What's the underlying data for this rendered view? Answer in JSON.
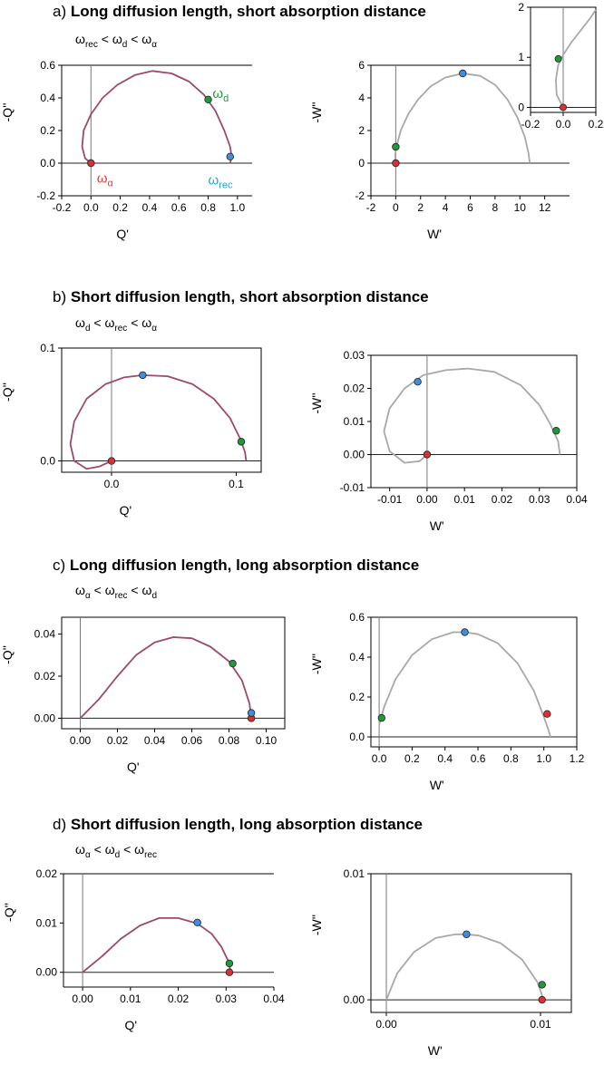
{
  "panels": [
    {
      "letter": "a)",
      "title": "Long diffusion length, short absorption distance",
      "ordering": [
        {
          "sym": "ω",
          "sub": "rec"
        },
        {
          "op": "<"
        },
        {
          "sym": "ω",
          "sub": "d"
        },
        {
          "op": "<"
        },
        {
          "sym": "ω",
          "sub": "α"
        }
      ]
    },
    {
      "letter": "b)",
      "title": "Short diffusion length, short absorption distance",
      "ordering": [
        {
          "sym": "ω",
          "sub": "d"
        },
        {
          "op": "<"
        },
        {
          "sym": "ω",
          "sub": "rec"
        },
        {
          "op": "<"
        },
        {
          "sym": "ω",
          "sub": "α"
        }
      ]
    },
    {
      "letter": "c)",
      "title": "Long diffusion length, long absorption distance",
      "ordering": [
        {
          "sym": "ω",
          "sub": "α"
        },
        {
          "op": "<"
        },
        {
          "sym": "ω",
          "sub": "rec"
        },
        {
          "op": "<"
        },
        {
          "sym": "ω",
          "sub": "d"
        }
      ]
    },
    {
      "letter": "d)",
      "title": "Short diffusion length, long absorption distance",
      "ordering": [
        {
          "sym": "ω",
          "sub": "α"
        },
        {
          "op": "<"
        },
        {
          "sym": "ω",
          "sub": "d"
        },
        {
          "op": "<"
        },
        {
          "sym": "ω",
          "sub": "rec"
        }
      ]
    }
  ],
  "colors": {
    "q_curve": "#9b4a6e",
    "w_curve": "#a8a8a8",
    "rec_marker": "#3d8fdc",
    "d_marker": "#1e9a3c",
    "alpha_marker": "#d93030",
    "rec_label": "#29a3d6",
    "d_label": "#1e9a3c",
    "alpha_label": "#e0403a"
  },
  "chart_data": [
    {
      "id": "a-Q",
      "type": "line",
      "xlabel": "Q'",
      "ylabel": "-Q''",
      "xlim": [
        -0.2,
        1.1
      ],
      "ylim": [
        -0.2,
        0.6
      ],
      "xticks": [
        -0.2,
        0.0,
        0.2,
        0.4,
        0.6,
        0.8,
        1.0
      ],
      "xtick_labels": [
        "-0.2",
        "0.0",
        "0.2",
        "0.4",
        "0.6",
        "0.8",
        "1.0"
      ],
      "yticks": [
        -0.2,
        0.0,
        0.2,
        0.4,
        0.6
      ],
      "ytick_labels": [
        "-0.2",
        "0.0",
        "0.2",
        "0.4",
        "0.6"
      ],
      "series": [
        {
          "color": "q_curve",
          "x": [
            0.0,
            -0.04,
            -0.06,
            -0.05,
            0.0,
            0.08,
            0.18,
            0.3,
            0.42,
            0.55,
            0.67,
            0.77,
            0.85,
            0.91,
            0.95,
            0.96,
            0.95
          ],
          "y": [
            0.0,
            0.03,
            0.1,
            0.2,
            0.3,
            0.4,
            0.48,
            0.54,
            0.565,
            0.55,
            0.5,
            0.42,
            0.32,
            0.2,
            0.1,
            0.04,
            0.0
          ]
        }
      ],
      "markers": [
        {
          "x": 0.0,
          "y": 0.0,
          "color": "alpha_marker"
        },
        {
          "x": 0.8,
          "y": 0.39,
          "color": "d_marker"
        },
        {
          "x": 0.95,
          "y": 0.04,
          "color": "rec_marker"
        }
      ],
      "labels": [
        {
          "text": "ω",
          "sub": "α",
          "x": 0.04,
          "y": -0.12,
          "color": "alpha_label"
        },
        {
          "text": "ω",
          "sub": "d",
          "x": 0.83,
          "y": 0.4,
          "color": "d_label"
        },
        {
          "text": "ω",
          "sub": "rec",
          "x": 0.8,
          "y": -0.13,
          "color": "rec_label"
        }
      ]
    },
    {
      "id": "a-W",
      "type": "line",
      "xlabel": "W'",
      "ylabel": "-W''",
      "xlim": [
        -2,
        14
      ],
      "ylim": [
        -2,
        6
      ],
      "xticks": [
        -2,
        0,
        2,
        4,
        6,
        8,
        10,
        12
      ],
      "xtick_labels": [
        "-2",
        "0",
        "2",
        "4",
        "6",
        "8",
        "10",
        "12"
      ],
      "yticks": [
        -2,
        0,
        2,
        4,
        6
      ],
      "ytick_labels": [
        "-2",
        "0",
        "2",
        "4",
        "6"
      ],
      "series": [
        {
          "color": "w_curve",
          "x": [
            0.0,
            -0.05,
            0.05,
            0.4,
            1.0,
            1.8,
            2.8,
            4.0,
            5.4,
            6.8,
            8.0,
            9.0,
            9.8,
            10.4,
            10.7,
            10.8
          ],
          "y": [
            0.0,
            0.5,
            1.0,
            2.0,
            3.0,
            3.9,
            4.7,
            5.25,
            5.5,
            5.35,
            4.8,
            3.9,
            2.8,
            1.6,
            0.6,
            0.0
          ]
        }
      ],
      "markers": [
        {
          "x": 0.0,
          "y": 0.0,
          "color": "alpha_marker"
        },
        {
          "x": 0.0,
          "y": 1.0,
          "color": "d_marker"
        },
        {
          "x": 5.4,
          "y": 5.5,
          "color": "rec_marker"
        }
      ],
      "labels": []
    },
    {
      "id": "a-W-inset",
      "type": "line",
      "xlabel": "",
      "ylabel": "",
      "xlim": [
        -0.2,
        0.2
      ],
      "ylim": [
        -0.1,
        2.0
      ],
      "xticks": [
        -0.2,
        0.0,
        0.2
      ],
      "xtick_labels": [
        "-0.2",
        "0.0",
        "0.2"
      ],
      "yticks": [
        0,
        1,
        2
      ],
      "ytick_labels": [
        "0",
        "1",
        "2"
      ],
      "series": [
        {
          "color": "w_curve",
          "x": [
            0.0,
            -0.04,
            -0.045,
            -0.03,
            0.0,
            0.05,
            0.11,
            0.17,
            0.2
          ],
          "y": [
            0.0,
            0.25,
            0.55,
            0.85,
            1.05,
            1.3,
            1.55,
            1.8,
            1.95
          ]
        }
      ],
      "markers": [
        {
          "x": 0.0,
          "y": 0.0,
          "color": "alpha_marker"
        },
        {
          "x": -0.03,
          "y": 0.97,
          "color": "d_marker"
        }
      ],
      "labels": []
    },
    {
      "id": "b-Q",
      "type": "line",
      "xlabel": "Q'",
      "ylabel": "-Q''",
      "xlim": [
        -0.04,
        0.12
      ],
      "ylim": [
        -0.01,
        0.1
      ],
      "xticks": [
        0.0,
        0.1
      ],
      "xtick_labels": [
        "0.0",
        "0.1"
      ],
      "yticks": [
        0.0,
        0.1
      ],
      "ytick_labels": [
        "0.0",
        "0.1"
      ],
      "series": [
        {
          "color": "q_curve",
          "x": [
            0.0,
            -0.01,
            -0.02,
            -0.03,
            -0.033,
            -0.03,
            -0.02,
            -0.005,
            0.01,
            0.025,
            0.045,
            0.065,
            0.082,
            0.095,
            0.103,
            0.107,
            0.108
          ],
          "y": [
            0.0,
            -0.005,
            -0.007,
            0.0,
            0.015,
            0.035,
            0.055,
            0.068,
            0.074,
            0.076,
            0.075,
            0.068,
            0.055,
            0.038,
            0.02,
            0.008,
            0.0
          ]
        }
      ],
      "markers": [
        {
          "x": 0.0,
          "y": 0.0,
          "color": "alpha_marker"
        },
        {
          "x": 0.025,
          "y": 0.076,
          "color": "rec_marker"
        },
        {
          "x": 0.104,
          "y": 0.017,
          "color": "d_marker"
        }
      ],
      "labels": []
    },
    {
      "id": "b-W",
      "type": "line",
      "xlabel": "W'",
      "ylabel": "-W''",
      "xlim": [
        -0.015,
        0.04
      ],
      "ylim": [
        -0.01,
        0.03
      ],
      "xticks": [
        -0.01,
        0.0,
        0.01,
        0.02,
        0.03,
        0.04
      ],
      "xtick_labels": [
        "-0.01",
        "0.00",
        "0.01",
        "0.02",
        "0.03",
        "0.04"
      ],
      "yticks": [
        -0.01,
        0.0,
        0.01,
        0.02,
        0.03
      ],
      "ytick_labels": [
        "-0.01",
        "0.00",
        "0.01",
        "0.02",
        "0.03"
      ],
      "series": [
        {
          "color": "w_curve",
          "x": [
            0.0,
            -0.002,
            -0.006,
            -0.01,
            -0.0115,
            -0.01,
            -0.006,
            -0.001,
            0.005,
            0.011,
            0.018,
            0.025,
            0.03,
            0.033,
            0.035,
            0.0355
          ],
          "y": [
            0.0,
            -0.002,
            -0.0025,
            0.001,
            0.007,
            0.014,
            0.02,
            0.024,
            0.0255,
            0.026,
            0.025,
            0.021,
            0.015,
            0.009,
            0.004,
            0.0
          ]
        }
      ],
      "markers": [
        {
          "x": 0.0,
          "y": 0.0,
          "color": "alpha_marker"
        },
        {
          "x": -0.0025,
          "y": 0.022,
          "color": "rec_marker"
        },
        {
          "x": 0.0345,
          "y": 0.0072,
          "color": "d_marker"
        }
      ],
      "labels": []
    },
    {
      "id": "c-Q",
      "type": "line",
      "xlabel": "Q'",
      "ylabel": "-Q''",
      "xlim": [
        -0.01,
        0.11
      ],
      "ylim": [
        -0.005,
        0.048
      ],
      "xticks": [
        0.0,
        0.02,
        0.04,
        0.06,
        0.08,
        0.1
      ],
      "xtick_labels": [
        "0.00",
        "0.02",
        "0.04",
        "0.06",
        "0.08",
        "0.10"
      ],
      "yticks": [
        0.0,
        0.02,
        0.04
      ],
      "ytick_labels": [
        "0.00",
        "0.02",
        "0.04"
      ],
      "series": [
        {
          "color": "q_curve",
          "x": [
            0.0,
            0.01,
            0.02,
            0.03,
            0.04,
            0.05,
            0.06,
            0.07,
            0.08,
            0.087,
            0.091,
            0.092
          ],
          "y": [
            0.0,
            0.009,
            0.02,
            0.03,
            0.036,
            0.0385,
            0.038,
            0.034,
            0.027,
            0.018,
            0.007,
            0.0
          ]
        }
      ],
      "markers": [
        {
          "x": 0.092,
          "y": 0.0,
          "color": "alpha_marker"
        },
        {
          "x": 0.092,
          "y": 0.0025,
          "color": "rec_marker"
        },
        {
          "x": 0.082,
          "y": 0.026,
          "color": "d_marker"
        }
      ],
      "labels": []
    },
    {
      "id": "c-W",
      "type": "line",
      "xlabel": "W'",
      "ylabel": "-W''",
      "xlim": [
        -0.05,
        1.2
      ],
      "ylim": [
        -0.05,
        0.6
      ],
      "xticks": [
        0.0,
        0.2,
        0.4,
        0.6,
        0.8,
        1.0,
        1.2
      ],
      "xtick_labels": [
        "0.0",
        "0.2",
        "0.4",
        "0.6",
        "0.8",
        "1.0",
        "1.2"
      ],
      "yticks": [
        0.0,
        0.2,
        0.4,
        0.6
      ],
      "ytick_labels": [
        "0.0",
        "0.2",
        "0.4",
        "0.6"
      ],
      "series": [
        {
          "color": "w_curve",
          "x": [
            0.0,
            0.03,
            0.1,
            0.2,
            0.32,
            0.45,
            0.52,
            0.6,
            0.72,
            0.84,
            0.94,
            1.0,
            1.03,
            1.04
          ],
          "y": [
            0.06,
            0.15,
            0.29,
            0.41,
            0.49,
            0.525,
            0.525,
            0.515,
            0.47,
            0.37,
            0.23,
            0.1,
            0.03,
            0.0
          ]
        }
      ],
      "markers": [
        {
          "x": 0.015,
          "y": 0.095,
          "color": "d_marker"
        },
        {
          "x": 0.52,
          "y": 0.525,
          "color": "rec_marker"
        },
        {
          "x": 1.02,
          "y": 0.115,
          "color": "alpha_marker"
        }
      ],
      "labels": []
    },
    {
      "id": "d-Q",
      "type": "line",
      "xlabel": "Q'",
      "ylabel": "-Q''",
      "xlim": [
        -0.004,
        0.04
      ],
      "ylim": [
        -0.003,
        0.02
      ],
      "xticks": [
        0.0,
        0.01,
        0.02,
        0.03,
        0.04
      ],
      "xtick_labels": [
        "0.00",
        "0.01",
        "0.02",
        "0.03",
        "0.04"
      ],
      "yticks": [
        0.0,
        0.01,
        0.02
      ],
      "ytick_labels": [
        "0.00",
        "0.01",
        "0.02"
      ],
      "series": [
        {
          "color": "q_curve",
          "x": [
            0.0,
            0.004,
            0.008,
            0.012,
            0.016,
            0.02,
            0.024,
            0.027,
            0.029,
            0.0305,
            0.031
          ],
          "y": [
            0.0,
            0.0032,
            0.0068,
            0.0095,
            0.011,
            0.011,
            0.0099,
            0.0078,
            0.0052,
            0.0022,
            0.0
          ]
        }
      ],
      "markers": [
        {
          "x": 0.024,
          "y": 0.0101,
          "color": "rec_marker"
        },
        {
          "x": 0.0307,
          "y": 0.0018,
          "color": "d_marker"
        },
        {
          "x": 0.0307,
          "y": 0.0,
          "color": "alpha_marker"
        }
      ],
      "labels": []
    },
    {
      "id": "d-W",
      "type": "line",
      "xlabel": "W'",
      "ylabel": "-W''",
      "xlim": [
        -0.001,
        0.012
      ],
      "ylim": [
        -0.001,
        0.01
      ],
      "xticks": [
        0.0,
        0.01
      ],
      "xtick_labels": [
        "0.00",
        "0.01"
      ],
      "yticks": [
        0.0,
        0.01
      ],
      "ytick_labels": [
        "0.00",
        "0.01"
      ],
      "series": [
        {
          "color": "w_curve",
          "x": [
            0.0,
            0.0007,
            0.0018,
            0.0032,
            0.0045,
            0.0052,
            0.006,
            0.0074,
            0.0088,
            0.0098,
            0.0102
          ],
          "y": [
            0.0,
            0.0021,
            0.0038,
            0.0049,
            0.0052,
            0.0052,
            0.0051,
            0.0045,
            0.0032,
            0.0014,
            0.0
          ]
        }
      ],
      "markers": [
        {
          "x": 0.0052,
          "y": 0.0052,
          "color": "rec_marker"
        },
        {
          "x": 0.0101,
          "y": 0.0012,
          "color": "d_marker"
        },
        {
          "x": 0.0101,
          "y": 0.0,
          "color": "alpha_marker"
        }
      ],
      "labels": []
    }
  ]
}
